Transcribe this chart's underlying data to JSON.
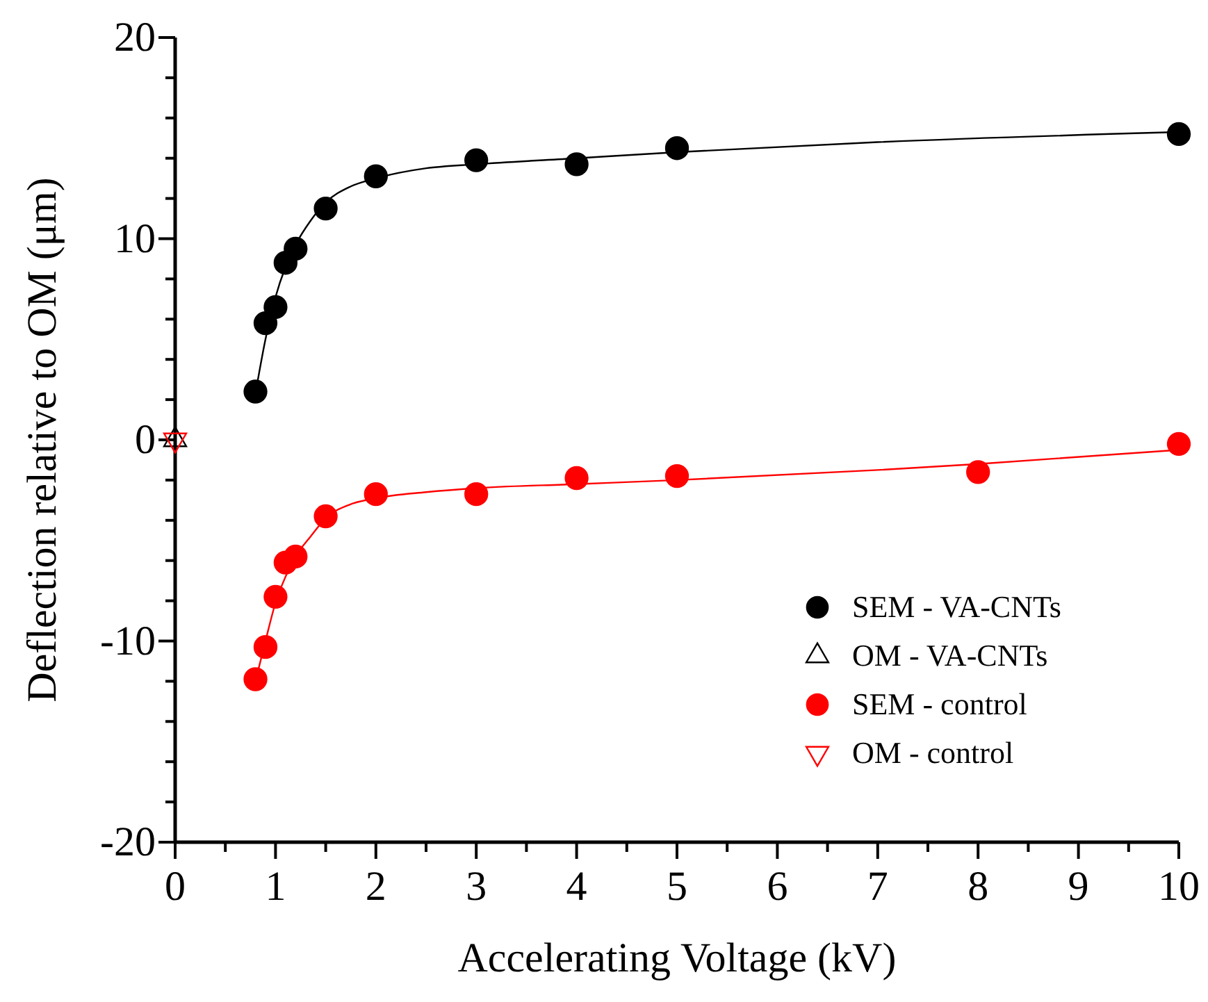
{
  "chart_data": {
    "type": "scatter",
    "xlabel": "Accelerating Voltage (kV)",
    "ylabel": "Deflection relative to OM (μm)",
    "xlim": [
      0,
      10
    ],
    "ylim": [
      -20,
      20
    ],
    "xticks": [
      0,
      {
        "value": 0.5,
        "label": null
      },
      1,
      {
        "value": 1.5,
        "label": null
      },
      2,
      {
        "value": 2.5,
        "label": null
      },
      3,
      {
        "value": 3.5,
        "label": null
      },
      4,
      {
        "value": 4.5,
        "label": null
      },
      5,
      {
        "value": 5.5,
        "label": null
      },
      6,
      {
        "value": 6.5,
        "label": null
      },
      7,
      {
        "value": 7.5,
        "label": null
      },
      8,
      {
        "value": 8.5,
        "label": null
      },
      9,
      {
        "value": 9.5,
        "label": null
      },
      10
    ],
    "yticks": [
      -20,
      {
        "value": -18,
        "label": null
      },
      {
        "value": -16,
        "label": null
      },
      {
        "value": -14,
        "label": null
      },
      {
        "value": -12,
        "label": null
      },
      -10,
      {
        "value": -8,
        "label": null
      },
      {
        "value": -6,
        "label": null
      },
      {
        "value": -4,
        "label": null
      },
      {
        "value": -2,
        "label": null
      },
      0,
      {
        "value": 2,
        "label": null
      },
      {
        "value": 4,
        "label": null
      },
      {
        "value": 6,
        "label": null
      },
      {
        "value": 8,
        "label": null
      },
      10,
      {
        "value": 12,
        "label": null
      },
      {
        "value": 14,
        "label": null
      },
      {
        "value": 16,
        "label": null
      },
      {
        "value": 18,
        "label": null
      },
      20
    ],
    "grid": false,
    "legend": "right",
    "series": [
      {
        "type": "line",
        "color": "#000000",
        "x": [
          0.8,
          0.9,
          1.0,
          1.1,
          1.2,
          1.35,
          1.5,
          1.75,
          2,
          2.5,
          3,
          4,
          5,
          7,
          10
        ],
        "values": [
          2.3,
          5.0,
          7.1,
          8.6,
          9.7,
          10.9,
          11.8,
          12.6,
          13.0,
          13.5,
          13.7,
          14.0,
          14.3,
          14.8,
          15.3
        ],
        "marker": "none"
      },
      {
        "type": "line",
        "color": "#ff0000",
        "x": [
          0.8,
          0.9,
          1.0,
          1.1,
          1.2,
          1.35,
          1.5,
          1.75,
          2,
          2.5,
          3,
          4,
          5,
          7,
          8,
          10
        ],
        "values": [
          -12.0,
          -10.0,
          -8.1,
          -6.8,
          -5.8,
          -4.8,
          -3.9,
          -3.2,
          -2.9,
          -2.6,
          -2.4,
          -2.2,
          -2.0,
          -1.5,
          -1.2,
          -0.5
        ],
        "marker": "none"
      },
      {
        "name": "SEM - VA-CNTs",
        "color": "#000000",
        "marker": "circle",
        "x": [
          0.8,
          0.9,
          1.0,
          1.1,
          1.2,
          1.5,
          2,
          3,
          4,
          5,
          10
        ],
        "values": [
          2.4,
          5.8,
          6.6,
          8.8,
          9.5,
          11.5,
          13.1,
          13.9,
          13.7,
          14.5,
          15.2
        ]
      },
      {
        "name": "OM - VA-CNTs",
        "color": "#000000",
        "marker": "triangle",
        "x": [
          0
        ],
        "values": [
          0
        ]
      },
      {
        "name": "SEM - control",
        "color": "#ff0000",
        "marker": "circle",
        "x": [
          0.8,
          0.9,
          1.0,
          1.1,
          1.2,
          1.5,
          2,
          3,
          4,
          5,
          8,
          10
        ],
        "values": [
          -11.9,
          -10.3,
          -7.8,
          -6.1,
          -5.8,
          -3.8,
          -2.7,
          -2.7,
          -1.9,
          -1.8,
          -1.6,
          -0.2
        ]
      },
      {
        "name": "OM - control",
        "color": "#ff0000",
        "marker": "triangle-down",
        "x": [
          0
        ],
        "values": [
          0
        ]
      }
    ]
  }
}
